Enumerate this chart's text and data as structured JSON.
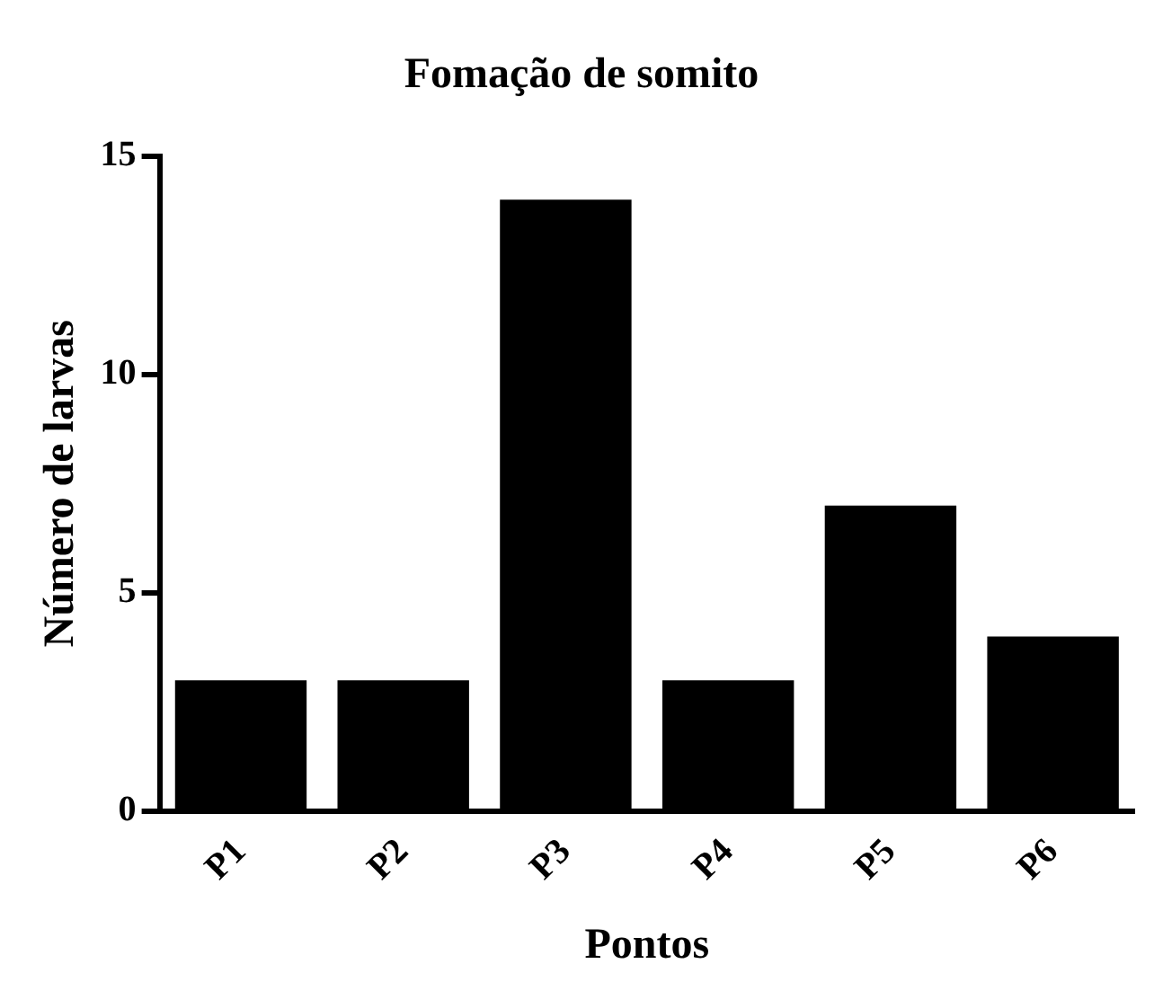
{
  "chart_data": {
    "type": "bar",
    "title": "Fomação de somito",
    "xlabel": "Pontos",
    "ylabel": "Número de larvas",
    "categories": [
      "P1",
      "P2",
      "P3",
      "P4",
      "P5",
      "P6"
    ],
    "values": [
      3,
      3,
      14,
      3,
      7,
      4
    ],
    "color": "#000000",
    "ylim": [
      0,
      15
    ],
    "yticks": [
      0,
      5,
      10,
      15
    ],
    "grid": false,
    "legend": false
  }
}
